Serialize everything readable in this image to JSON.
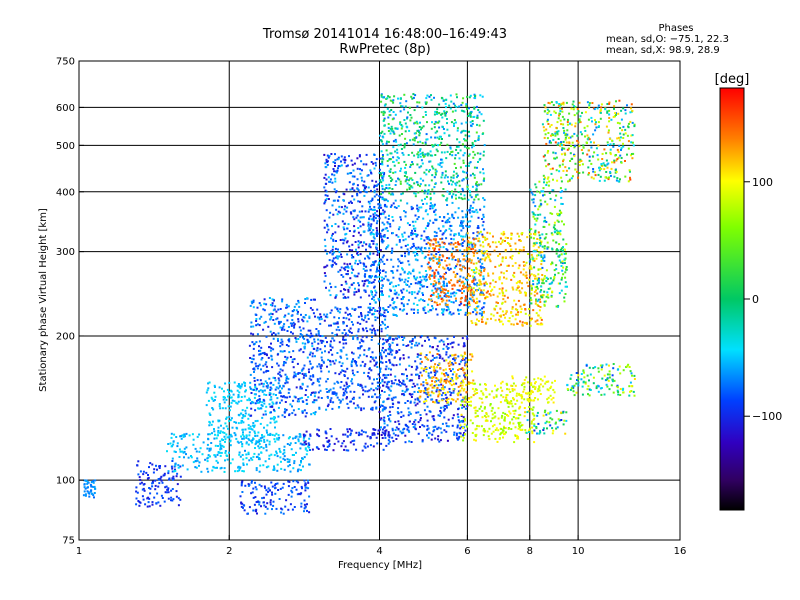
{
  "header": {
    "title_line1": "Tromsø 20141014 16:48:00–16:49:43",
    "title_line2": "RwPretec (8p)"
  },
  "stats": {
    "title": "Phases",
    "line_o": "mean, sd,O: −75.1, 22.3",
    "line_x": "mean, sd,X:  98.9, 28.9"
  },
  "colorbar": {
    "label": "[deg]",
    "ticks": [
      {
        "value": 100,
        "label": "100"
      },
      {
        "value": 0,
        "label": "0"
      },
      {
        "value": -100,
        "label": "−100"
      }
    ],
    "range": [
      -180,
      180
    ]
  },
  "chart_data": {
    "type": "scatter",
    "title": "Tromsø 20141014 16:48:00–16:49:43",
    "subtitle": "RwPretec (8p)",
    "xlabel": "Frequency [MHz]",
    "ylabel": "Stationary phase Virtual Height [km]",
    "x_scale": "log",
    "y_scale": "log",
    "xlim": [
      1,
      16
    ],
    "ylim": [
      75,
      750
    ],
    "x_ticks": [
      1,
      2,
      4,
      6,
      8,
      10,
      16
    ],
    "y_ticks": [
      75,
      100,
      200,
      300,
      400,
      500,
      600,
      750
    ],
    "x_grid": [
      2,
      4,
      6,
      8,
      10
    ],
    "y_grid": [
      100,
      200,
      300,
      400,
      500,
      600
    ],
    "grid": true,
    "colorbar_quantity": "phase [deg]",
    "colorbar_range": [
      -180,
      180
    ],
    "clusters": [
      {
        "x": [
          1.02,
          1.08
        ],
        "y": [
          92,
          100
        ],
        "phase": [
          -80,
          -60
        ]
      },
      {
        "x": [
          1.3,
          1.6
        ],
        "y": [
          88,
          110
        ],
        "phase": [
          -110,
          -80
        ]
      },
      {
        "x": [
          1.5,
          2.9
        ],
        "y": [
          104,
          125
        ],
        "phase": [
          -70,
          -40
        ]
      },
      {
        "x": [
          1.8,
          2.5
        ],
        "y": [
          120,
          160
        ],
        "phase": [
          -60,
          -40
        ]
      },
      {
        "x": [
          2.1,
          2.9
        ],
        "y": [
          85,
          100
        ],
        "phase": [
          -110,
          -70
        ]
      },
      {
        "x": [
          2.2,
          3.0
        ],
        "y": [
          135,
          240
        ],
        "phase": [
          -110,
          -50
        ]
      },
      {
        "x": [
          2.8,
          4.2
        ],
        "y": [
          115,
          128
        ],
        "phase": [
          -120,
          -80
        ]
      },
      {
        "x": [
          3.0,
          4.2
        ],
        "y": [
          140,
          230
        ],
        "phase": [
          -110,
          -60
        ]
      },
      {
        "x": [
          3.1,
          4.1
        ],
        "y": [
          240,
          480
        ],
        "phase": [
          -120,
          -50
        ]
      },
      {
        "x": [
          3.8,
          6.5
        ],
        "y": [
          220,
          380
        ],
        "phase": [
          -100,
          -40
        ]
      },
      {
        "x": [
          4.0,
          6.5
        ],
        "y": [
          380,
          640
        ],
        "phase": [
          -80,
          40
        ]
      },
      {
        "x": [
          4.0,
          6.0
        ],
        "y": [
          120,
          200
        ],
        "phase": [
          -120,
          -60
        ]
      },
      {
        "x": [
          5.0,
          6.2
        ],
        "y": [
          230,
          320
        ],
        "phase": [
          120,
          170
        ]
      },
      {
        "x": [
          4.8,
          6.2
        ],
        "y": [
          145,
          185
        ],
        "phase": [
          90,
          150
        ]
      },
      {
        "x": [
          5.8,
          8.2
        ],
        "y": [
          120,
          160
        ],
        "phase": [
          60,
          110
        ]
      },
      {
        "x": [
          6.0,
          8.5
        ],
        "y": [
          210,
          330
        ],
        "phase": [
          80,
          150
        ]
      },
      {
        "x": [
          7.0,
          9.0
        ],
        "y": [
          145,
          165
        ],
        "phase": [
          80,
          110
        ]
      },
      {
        "x": [
          7.8,
          9.5
        ],
        "y": [
          125,
          140
        ],
        "phase": [
          -110,
          120
        ]
      },
      {
        "x": [
          8.0,
          9.5
        ],
        "y": [
          230,
          420
        ],
        "phase": [
          -80,
          100
        ]
      },
      {
        "x": [
          9.5,
          13.0
        ],
        "y": [
          150,
          175
        ],
        "phase": [
          -90,
          110
        ]
      },
      {
        "x": [
          8.5,
          13.0
        ],
        "y": [
          420,
          620
        ],
        "phase": [
          -80,
          160
        ]
      }
    ]
  }
}
